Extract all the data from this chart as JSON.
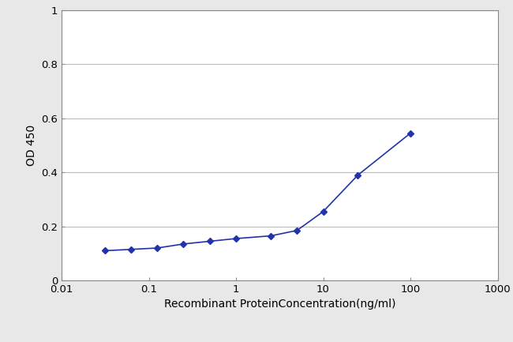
{
  "x_values": [
    0.0313,
    0.0625,
    0.125,
    0.25,
    0.5,
    1.0,
    2.5,
    5.0,
    10.0,
    25.0,
    100.0
  ],
  "y_values": [
    0.11,
    0.115,
    0.12,
    0.135,
    0.145,
    0.155,
    0.165,
    0.185,
    0.255,
    0.39,
    0.545
  ],
  "line_color": "#2233aa",
  "marker_color": "#2233aa",
  "marker_style": "D",
  "marker_size": 4,
  "line_width": 1.2,
  "xlabel": "Recombinant ProteinConcentration(ng/ml)",
  "ylabel": "OD 450",
  "xlim_log": [
    0.01,
    1000
  ],
  "ylim": [
    0,
    1
  ],
  "yticks": [
    0,
    0.2,
    0.4,
    0.6,
    0.8,
    1.0
  ],
  "ytick_labels": [
    "0",
    "0.2",
    "0.4",
    "0.6",
    "0.8",
    "1"
  ],
  "xtick_positions": [
    0.01,
    0.1,
    1,
    10,
    100,
    1000
  ],
  "xtick_labels": [
    "0.01",
    "0.1",
    "1",
    "10",
    "100",
    "1000"
  ],
  "fig_bg_color": "#e8e8e8",
  "plot_bg_color": "#ffffff",
  "grid_color": "#bbbbbb",
  "spine_color": "#888888",
  "xlabel_fontsize": 10,
  "ylabel_fontsize": 10,
  "tick_fontsize": 9.5
}
